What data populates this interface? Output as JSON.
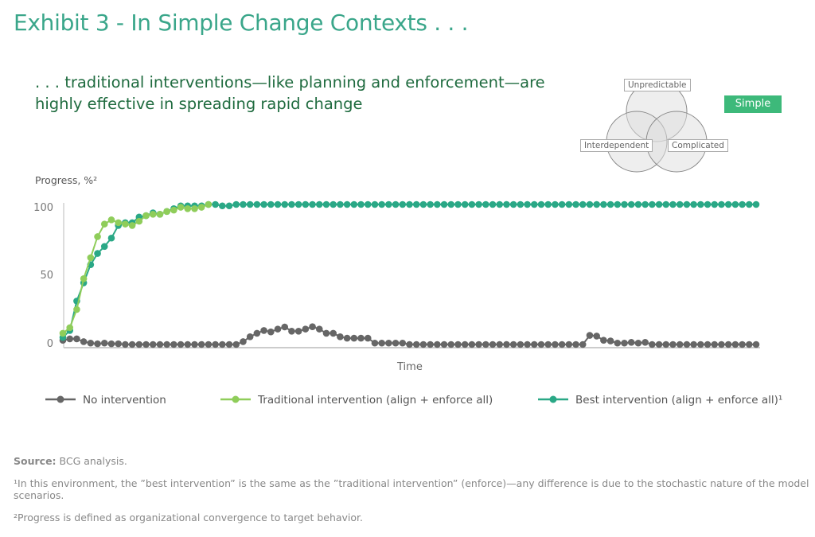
{
  "title": "Exhibit 3 - In Simple Change Contexts . . .",
  "subtitle_lines": [
    ". . . traditional interventions—like planning and enforcement—are",
    "highly effective in spreading rapid change"
  ],
  "venn": {
    "labels": [
      "Unpredictable",
      "Interdependent",
      "Complicated"
    ],
    "badge": "Simple",
    "badge_color": "#3db97a"
  },
  "footer": {
    "source_label": "Source:",
    "source_text": " BCG analysis.",
    "note1": "¹In this environment, the ”best intervention” is the same as the ”traditional intervention” (enforce)—any difference is due to the stochastic nature of the model scenarios.",
    "note2": "²Progress is defined as organizational convergence to target behavior."
  },
  "chart_data": {
    "type": "line",
    "title": "",
    "ylabel": "Progress, %²",
    "xlabel": "Time",
    "ylim": [
      0,
      100
    ],
    "yticks": [
      "0",
      "50",
      "100"
    ],
    "grid": false,
    "legend": "bottom",
    "x": "time steps 0–100 (unlabeled)",
    "series": [
      {
        "name": "No intervention",
        "color": "#666666",
        "values": [
          3,
          4,
          4,
          2,
          1,
          0.5,
          1,
          0.5,
          0.5,
          0,
          0,
          0,
          0,
          0,
          0,
          0,
          0,
          0,
          0,
          0,
          0,
          0,
          0,
          0,
          0,
          0,
          2,
          5.5,
          8,
          10,
          9,
          11,
          12.5,
          9.5,
          9.5,
          11,
          12.7,
          11,
          8,
          8,
          5.5,
          4.5,
          4.5,
          4.5,
          4.5,
          1,
          1,
          1,
          1,
          1,
          0,
          0,
          0,
          0,
          0,
          0,
          0,
          0,
          0,
          0,
          0,
          0,
          0,
          0,
          0,
          0,
          0,
          0,
          0,
          0,
          0,
          0,
          0,
          0,
          0,
          0,
          6.5,
          6,
          3,
          2.5,
          1,
          1,
          1.5,
          1,
          1.5,
          0,
          0,
          0,
          0,
          0,
          0,
          0,
          0,
          0,
          0,
          0,
          0,
          0,
          0,
          0,
          0
        ]
      },
      {
        "name": "Traditional intervention (align + enforce all)",
        "color": "#8fcd5a",
        "values": [
          8,
          12,
          25,
          47,
          62,
          77,
          86,
          89,
          87,
          86,
          85,
          88,
          92,
          93,
          93,
          95,
          96,
          98,
          97,
          97,
          98,
          100
        ]
      },
      {
        "name": "Best intervention (align + enforce all)¹",
        "color": "#2aa886",
        "values": [
          5,
          10,
          31,
          44,
          57,
          65,
          70,
          76,
          85,
          87,
          87,
          91,
          92,
          94,
          93,
          95,
          97,
          99,
          99,
          99,
          99,
          100,
          100,
          99,
          99,
          100,
          100,
          100,
          100,
          100,
          100,
          100,
          100,
          100,
          100,
          100,
          100,
          100,
          100,
          100,
          100,
          100,
          100,
          100,
          100,
          100,
          100,
          100,
          100,
          100,
          100,
          100,
          100,
          100,
          100,
          100,
          100,
          100,
          100,
          100,
          100,
          100,
          100,
          100,
          100,
          100,
          100,
          100,
          100,
          100,
          100,
          100,
          100,
          100,
          100,
          100,
          100,
          100,
          100,
          100,
          100,
          100,
          100,
          100,
          100,
          100,
          100,
          100,
          100,
          100,
          100,
          100,
          100,
          100,
          100,
          100,
          100,
          100,
          100,
          100,
          100
        ]
      }
    ]
  }
}
